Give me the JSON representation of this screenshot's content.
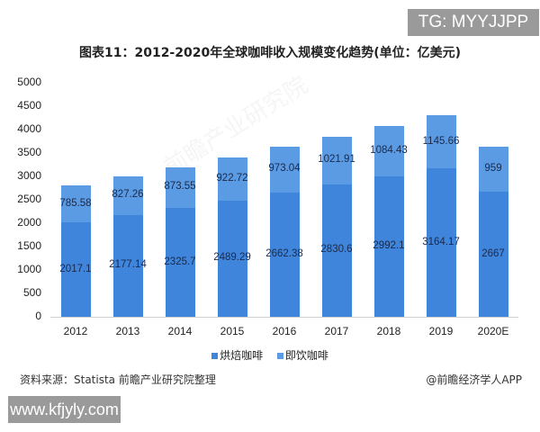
{
  "watermark_top": "TG: MYYJJPP",
  "watermark_bottom": "www.kfjyly.com",
  "watermark_center": "前瞻产业研究院",
  "footer": {
    "source": "资料来源：Statista 前瞻产业研究院整理",
    "credit": "@前瞻经济学人APP"
  },
  "legend": {
    "roast": "烘焙咖啡",
    "instant": "即饮咖啡"
  },
  "yticks": [
    "0",
    "500",
    "1000",
    "1500",
    "2000",
    "2500",
    "3000",
    "3500",
    "4000",
    "4500",
    "5000"
  ],
  "colors": {
    "roast": "#3f85dc",
    "instant": "#5b9be4"
  },
  "chart_data": {
    "type": "bar",
    "stacked": true,
    "title": "图表11：2012-2020年全球咖啡收入规模变化趋势(单位：亿美元)",
    "xlabel": "",
    "ylabel": "",
    "ylim": [
      0,
      5000
    ],
    "yticks": [
      0,
      500,
      1000,
      1500,
      2000,
      2500,
      3000,
      3500,
      4000,
      4500,
      5000
    ],
    "grid": false,
    "legend_position": "bottom",
    "categories": [
      "2012",
      "2013",
      "2014",
      "2015",
      "2016",
      "2017",
      "2018",
      "2019",
      "2020E"
    ],
    "series": [
      {
        "name": "烘焙咖啡",
        "values": [
          2017.1,
          2177.14,
          2325.7,
          2489.29,
          2662.38,
          2830.6,
          2992.1,
          3164.17,
          2667
        ]
      },
      {
        "name": "即饮咖啡",
        "values": [
          785.58,
          827.26,
          873.55,
          922.72,
          973.04,
          1021.91,
          1084.43,
          1145.66,
          959
        ]
      }
    ],
    "labels": {
      "roast": [
        "2017.1",
        "2177.14",
        "2325.7",
        "2489.29",
        "2662.38",
        "2830.6",
        "2992.1",
        "3164.17",
        "2667"
      ],
      "instant": [
        "785.58",
        "827.26",
        "873.55",
        "922.72",
        "973.04",
        "1021.91",
        "1084.43",
        "1145.66",
        "959"
      ]
    }
  }
}
